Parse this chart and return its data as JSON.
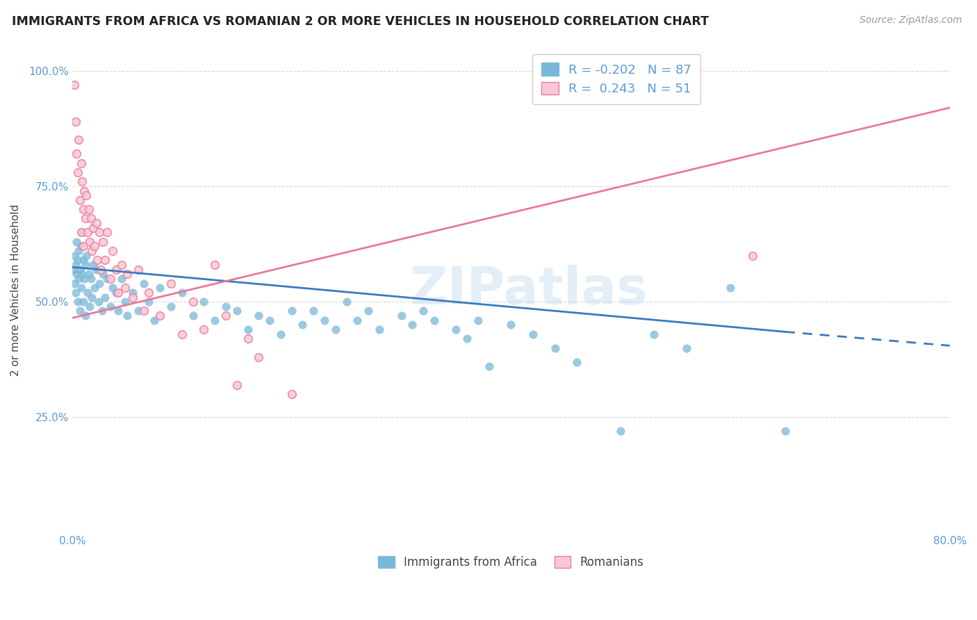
{
  "title": "IMMIGRANTS FROM AFRICA VS ROMANIAN 2 OR MORE VEHICLES IN HOUSEHOLD CORRELATION CHART",
  "source_text": "Source: ZipAtlas.com",
  "ylabel": "2 or more Vehicles in Household",
  "xmin": 0.0,
  "xmax": 0.8,
  "ymin": 0.0,
  "ymax": 1.05,
  "africa_color": "#7ab8d9",
  "africa_edge": "#7ab8d9",
  "romania_color": "#f9c8d4",
  "romania_edge": "#e87fa0",
  "africa_line_color": "#3a7abf",
  "romania_line_color": "#e8789a",
  "watermark_color": "#c8dff0",
  "tick_color": "#5b9bd5",
  "grid_color": "#d8d8d8",
  "legend_bottom": [
    "Immigrants from Africa",
    "Romanians"
  ],
  "africa_R": -0.202,
  "romania_R": 0.243,
  "africa_N": 87,
  "romania_N": 51,
  "africa_scatter": [
    [
      0.001,
      0.57
    ],
    [
      0.002,
      0.6
    ],
    [
      0.002,
      0.54
    ],
    [
      0.003,
      0.58
    ],
    [
      0.003,
      0.52
    ],
    [
      0.004,
      0.63
    ],
    [
      0.004,
      0.56
    ],
    [
      0.005,
      0.59
    ],
    [
      0.005,
      0.5
    ],
    [
      0.006,
      0.61
    ],
    [
      0.006,
      0.55
    ],
    [
      0.007,
      0.57
    ],
    [
      0.007,
      0.48
    ],
    [
      0.008,
      0.62
    ],
    [
      0.008,
      0.53
    ],
    [
      0.009,
      0.65
    ],
    [
      0.009,
      0.56
    ],
    [
      0.01,
      0.59
    ],
    [
      0.01,
      0.5
    ],
    [
      0.011,
      0.55
    ],
    [
      0.012,
      0.58
    ],
    [
      0.012,
      0.47
    ],
    [
      0.013,
      0.6
    ],
    [
      0.014,
      0.52
    ],
    [
      0.015,
      0.56
    ],
    [
      0.016,
      0.49
    ],
    [
      0.017,
      0.55
    ],
    [
      0.018,
      0.51
    ],
    [
      0.019,
      0.58
    ],
    [
      0.02,
      0.53
    ],
    [
      0.022,
      0.57
    ],
    [
      0.024,
      0.5
    ],
    [
      0.025,
      0.54
    ],
    [
      0.027,
      0.48
    ],
    [
      0.028,
      0.56
    ],
    [
      0.03,
      0.51
    ],
    [
      0.032,
      0.55
    ],
    [
      0.035,
      0.49
    ],
    [
      0.037,
      0.53
    ],
    [
      0.04,
      0.52
    ],
    [
      0.042,
      0.48
    ],
    [
      0.045,
      0.55
    ],
    [
      0.048,
      0.5
    ],
    [
      0.05,
      0.47
    ],
    [
      0.055,
      0.52
    ],
    [
      0.06,
      0.48
    ],
    [
      0.065,
      0.54
    ],
    [
      0.07,
      0.5
    ],
    [
      0.075,
      0.46
    ],
    [
      0.08,
      0.53
    ],
    [
      0.09,
      0.49
    ],
    [
      0.1,
      0.52
    ],
    [
      0.11,
      0.47
    ],
    [
      0.12,
      0.5
    ],
    [
      0.13,
      0.46
    ],
    [
      0.14,
      0.49
    ],
    [
      0.15,
      0.48
    ],
    [
      0.16,
      0.44
    ],
    [
      0.17,
      0.47
    ],
    [
      0.18,
      0.46
    ],
    [
      0.19,
      0.43
    ],
    [
      0.2,
      0.48
    ],
    [
      0.21,
      0.45
    ],
    [
      0.22,
      0.48
    ],
    [
      0.23,
      0.46
    ],
    [
      0.24,
      0.44
    ],
    [
      0.25,
      0.5
    ],
    [
      0.26,
      0.46
    ],
    [
      0.27,
      0.48
    ],
    [
      0.28,
      0.44
    ],
    [
      0.3,
      0.47
    ],
    [
      0.31,
      0.45
    ],
    [
      0.32,
      0.48
    ],
    [
      0.33,
      0.46
    ],
    [
      0.35,
      0.44
    ],
    [
      0.36,
      0.42
    ],
    [
      0.37,
      0.46
    ],
    [
      0.38,
      0.36
    ],
    [
      0.4,
      0.45
    ],
    [
      0.42,
      0.43
    ],
    [
      0.44,
      0.4
    ],
    [
      0.46,
      0.37
    ],
    [
      0.5,
      0.22
    ],
    [
      0.53,
      0.43
    ],
    [
      0.56,
      0.4
    ],
    [
      0.6,
      0.53
    ],
    [
      0.65,
      0.22
    ]
  ],
  "romania_scatter": [
    [
      0.002,
      0.97
    ],
    [
      0.003,
      0.89
    ],
    [
      0.004,
      0.82
    ],
    [
      0.005,
      0.78
    ],
    [
      0.006,
      0.85
    ],
    [
      0.007,
      0.72
    ],
    [
      0.008,
      0.8
    ],
    [
      0.008,
      0.65
    ],
    [
      0.009,
      0.76
    ],
    [
      0.01,
      0.7
    ],
    [
      0.01,
      0.62
    ],
    [
      0.011,
      0.74
    ],
    [
      0.012,
      0.68
    ],
    [
      0.013,
      0.73
    ],
    [
      0.014,
      0.65
    ],
    [
      0.015,
      0.7
    ],
    [
      0.016,
      0.63
    ],
    [
      0.017,
      0.68
    ],
    [
      0.018,
      0.61
    ],
    [
      0.019,
      0.66
    ],
    [
      0.02,
      0.62
    ],
    [
      0.022,
      0.67
    ],
    [
      0.023,
      0.59
    ],
    [
      0.025,
      0.65
    ],
    [
      0.026,
      0.57
    ],
    [
      0.028,
      0.63
    ],
    [
      0.03,
      0.59
    ],
    [
      0.032,
      0.65
    ],
    [
      0.035,
      0.55
    ],
    [
      0.037,
      0.61
    ],
    [
      0.04,
      0.57
    ],
    [
      0.042,
      0.52
    ],
    [
      0.045,
      0.58
    ],
    [
      0.048,
      0.53
    ],
    [
      0.05,
      0.56
    ],
    [
      0.055,
      0.51
    ],
    [
      0.06,
      0.57
    ],
    [
      0.065,
      0.48
    ],
    [
      0.07,
      0.52
    ],
    [
      0.08,
      0.47
    ],
    [
      0.09,
      0.54
    ],
    [
      0.1,
      0.43
    ],
    [
      0.11,
      0.5
    ],
    [
      0.12,
      0.44
    ],
    [
      0.13,
      0.58
    ],
    [
      0.14,
      0.47
    ],
    [
      0.15,
      0.32
    ],
    [
      0.16,
      0.42
    ],
    [
      0.17,
      0.38
    ],
    [
      0.2,
      0.3
    ],
    [
      0.62,
      0.6
    ]
  ],
  "africa_line": [
    [
      0.0,
      0.575
    ],
    [
      0.65,
      0.435
    ]
  ],
  "africa_line_dashed": [
    [
      0.65,
      0.435
    ],
    [
      0.8,
      0.405
    ]
  ],
  "romania_line": [
    [
      0.0,
      0.465
    ],
    [
      0.8,
      0.92
    ]
  ]
}
